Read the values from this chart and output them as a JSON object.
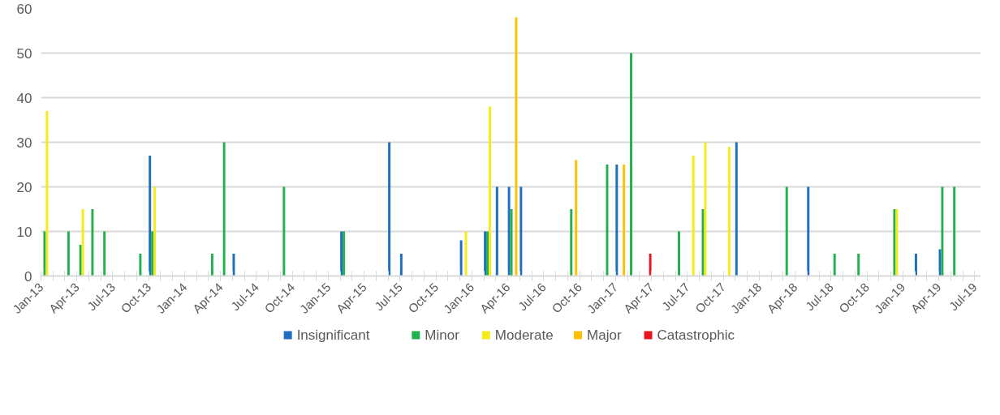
{
  "chart_data": {
    "type": "bar",
    "ylim": [
      0,
      60
    ],
    "yticks": [
      0,
      10,
      20,
      30,
      40,
      50,
      60
    ],
    "grid": "y",
    "legend": "bottom",
    "xlim": [
      "2013-01",
      "2019-08"
    ],
    "xticks": [
      {
        "value": "2013-01",
        "label": "Jan-13"
      },
      {
        "value": "2013-02",
        "label": null
      },
      {
        "value": "2013-03",
        "label": null
      },
      {
        "value": "2013-04",
        "label": "Apr-13"
      },
      {
        "value": "2013-05",
        "label": null
      },
      {
        "value": "2013-06",
        "label": null
      },
      {
        "value": "2013-07",
        "label": "Jul-13"
      },
      {
        "value": "2013-08",
        "label": null
      },
      {
        "value": "2013-09",
        "label": null
      },
      {
        "value": "2013-10",
        "label": "Oct-13"
      },
      {
        "value": "2013-11",
        "label": null
      },
      {
        "value": "2013-12",
        "label": null
      },
      {
        "value": "2014-01",
        "label": "Jan-14"
      },
      {
        "value": "2014-02",
        "label": null
      },
      {
        "value": "2014-03",
        "label": null
      },
      {
        "value": "2014-04",
        "label": "Apr-14"
      },
      {
        "value": "2014-05",
        "label": null
      },
      {
        "value": "2014-06",
        "label": null
      },
      {
        "value": "2014-07",
        "label": "Jul-14"
      },
      {
        "value": "2014-08",
        "label": null
      },
      {
        "value": "2014-09",
        "label": null
      },
      {
        "value": "2014-10",
        "label": "Oct-14"
      },
      {
        "value": "2014-11",
        "label": null
      },
      {
        "value": "2014-12",
        "label": null
      },
      {
        "value": "2015-01",
        "label": "Jan-15"
      },
      {
        "value": "2015-02",
        "label": null
      },
      {
        "value": "2015-03",
        "label": null
      },
      {
        "value": "2015-04",
        "label": "Apr-15"
      },
      {
        "value": "2015-05",
        "label": null
      },
      {
        "value": "2015-06",
        "label": null
      },
      {
        "value": "2015-07",
        "label": "Jul-15"
      },
      {
        "value": "2015-08",
        "label": null
      },
      {
        "value": "2015-09",
        "label": null
      },
      {
        "value": "2015-10",
        "label": "Oct-15"
      },
      {
        "value": "2015-11",
        "label": null
      },
      {
        "value": "2015-12",
        "label": null
      },
      {
        "value": "2016-01",
        "label": "Jan-16"
      },
      {
        "value": "2016-02",
        "label": null
      },
      {
        "value": "2016-03",
        "label": null
      },
      {
        "value": "2016-04",
        "label": "Apr-16"
      },
      {
        "value": "2016-05",
        "label": null
      },
      {
        "value": "2016-06",
        "label": null
      },
      {
        "value": "2016-07",
        "label": "Jul-16"
      },
      {
        "value": "2016-08",
        "label": null
      },
      {
        "value": "2016-09",
        "label": null
      },
      {
        "value": "2016-10",
        "label": "Oct-16"
      },
      {
        "value": "2016-11",
        "label": null
      },
      {
        "value": "2016-12",
        "label": null
      },
      {
        "value": "2017-01",
        "label": "Jan-17"
      },
      {
        "value": "2017-02",
        "label": null
      },
      {
        "value": "2017-03",
        "label": null
      },
      {
        "value": "2017-04",
        "label": "Apr-17"
      },
      {
        "value": "2017-05",
        "label": null
      },
      {
        "value": "2017-06",
        "label": null
      },
      {
        "value": "2017-07",
        "label": "Jul-17"
      },
      {
        "value": "2017-08",
        "label": null
      },
      {
        "value": "2017-09",
        "label": null
      },
      {
        "value": "2017-10",
        "label": "Oct-17"
      },
      {
        "value": "2017-11",
        "label": null
      },
      {
        "value": "2017-12",
        "label": null
      },
      {
        "value": "2018-01",
        "label": "Jan-18"
      },
      {
        "value": "2018-02",
        "label": null
      },
      {
        "value": "2018-03",
        "label": null
      },
      {
        "value": "2018-04",
        "label": "Apr-18"
      },
      {
        "value": "2018-05",
        "label": null
      },
      {
        "value": "2018-06",
        "label": null
      },
      {
        "value": "2018-07",
        "label": "Jul-18"
      },
      {
        "value": "2018-08",
        "label": null
      },
      {
        "value": "2018-09",
        "label": null
      },
      {
        "value": "2018-10",
        "label": "Oct-18"
      },
      {
        "value": "2018-11",
        "label": null
      },
      {
        "value": "2018-12",
        "label": null
      },
      {
        "value": "2019-01",
        "label": "Jan-19"
      },
      {
        "value": "2019-02",
        "label": null
      },
      {
        "value": "2019-03",
        "label": null
      },
      {
        "value": "2019-04",
        "label": "Apr-19"
      },
      {
        "value": "2019-05",
        "label": null
      },
      {
        "value": "2019-06",
        "label": null
      },
      {
        "value": "2019-07",
        "label": "Jul-19"
      }
    ],
    "series": [
      {
        "name": "Insignificant",
        "color": "#1f6fc1",
        "x": [
          "2013-10",
          "2014-05",
          "2015-02",
          "2015-06",
          "2015-07",
          "2015-12",
          "2016-02",
          "2016-03",
          "2016-04",
          "2016-05",
          "2017-01",
          "2017-11",
          "2018-05",
          "2019-02",
          "2019-04"
        ],
        "values": [
          27,
          5,
          10,
          30,
          5,
          8,
          10,
          20,
          20,
          20,
          25,
          30,
          20,
          5,
          6
        ]
      },
      {
        "name": "Minor",
        "color": "#22b14c",
        "x": [
          "2013-01",
          "2013-03",
          "2013-04",
          "2013-05",
          "2013-06",
          "2013-09",
          "2013-10",
          "2014-03",
          "2014-04",
          "2014-09",
          "2015-02",
          "2016-02",
          "2016-04",
          "2016-09",
          "2016-12",
          "2017-02",
          "2017-06",
          "2017-08",
          "2018-03",
          "2018-07",
          "2018-09",
          "2018-12",
          "2019-04",
          "2019-05"
        ],
        "values": [
          10,
          10,
          7,
          15,
          10,
          5,
          10,
          5,
          30,
          20,
          10,
          10,
          15,
          15,
          25,
          50,
          10,
          15,
          20,
          5,
          5,
          15,
          20,
          20
        ]
      },
      {
        "name": "Moderate",
        "color": "#f4ec19",
        "x": [
          "2013-01",
          "2013-04",
          "2013-10",
          "2015-12",
          "2016-02",
          "2017-07",
          "2017-08",
          "2017-10",
          "2018-12"
        ],
        "values": [
          37,
          15,
          20,
          10,
          38,
          27,
          30,
          29,
          15
        ]
      },
      {
        "name": "Major",
        "color": "#ffc000",
        "x": [
          "2016-04",
          "2016-09",
          "2017-01"
        ],
        "values": [
          58,
          26,
          25
        ]
      },
      {
        "name": "Catastrophic",
        "color": "#e8161b",
        "x": [
          "2017-03"
        ],
        "values": [
          5
        ]
      }
    ]
  }
}
